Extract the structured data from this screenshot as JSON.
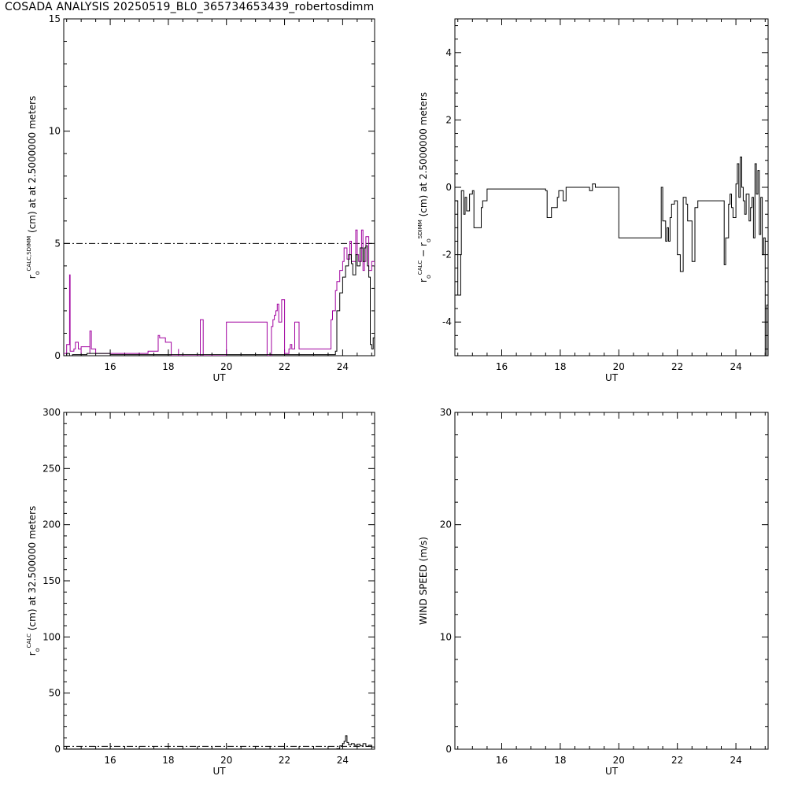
{
  "title": "COSADA ANALYSIS 20250519_BL0_365734653439_robertosdimm",
  "colors": {
    "black": "#000000",
    "magenta": "#a0009e"
  },
  "chart_data": [
    {
      "type": "line",
      "xlabel": "UT",
      "ylabel": {
        "main": "r",
        "sub": "o",
        "sup": "CALC,SDIMM",
        "rest": " (cm)  at   at 2.5000000 meters"
      },
      "xlim": [
        14.4,
        25.1
      ],
      "ylim": [
        0,
        15
      ],
      "xticks": [
        16,
        18,
        20,
        22,
        24
      ],
      "yticks": [
        0,
        5,
        10,
        15
      ],
      "reference_line": {
        "y": 5.0,
        "style": "dash-dot"
      },
      "series": [
        {
          "color": "#a0009e",
          "x": [
            14.4,
            14.5,
            14.6,
            14.62,
            14.75,
            14.8,
            14.9,
            15.0,
            15.0,
            15.3,
            15.3,
            15.35,
            15.5,
            15.5,
            17.3,
            17.3,
            17.5,
            17.65,
            17.7,
            17.9,
            18.1,
            18.1,
            18.35,
            18.35,
            18.4,
            19.05,
            19.1,
            19.2,
            19.2,
            19.25,
            19.25,
            20.0,
            20.0,
            21.4,
            21.4,
            21.55,
            21.6,
            21.65,
            21.7,
            21.75,
            21.8,
            21.9,
            22.0,
            22.1,
            22.15,
            22.2,
            22.25,
            22.35,
            22.5,
            22.6,
            22.65,
            22.7,
            23.5,
            23.6,
            23.65,
            23.75,
            23.8,
            23.9,
            24.0,
            24.05,
            24.15,
            24.25,
            24.3,
            24.45,
            24.5,
            24.55,
            24.65,
            24.7,
            24.75,
            24.8,
            24.9,
            25.0,
            25.1
          ],
          "y": [
            0.1,
            0.5,
            3.6,
            0.2,
            0.3,
            0.6,
            0.3,
            0.1,
            0.4,
            0.1,
            1.1,
            0.3,
            0.1,
            0.1,
            0.1,
            0.2,
            0.2,
            0.9,
            0.8,
            0.6,
            0.3,
            0.0,
            0.3,
            0.0,
            0.0,
            0.0,
            1.6,
            1.3,
            0.0,
            0.0,
            0.0,
            0.0,
            1.5,
            1.5,
            0.0,
            1.3,
            1.6,
            1.8,
            2.0,
            2.3,
            1.5,
            2.5,
            0.1,
            0.1,
            0.3,
            0.5,
            0.3,
            1.5,
            0.3,
            0.3,
            0.3,
            0.3,
            0.3,
            1.6,
            2.0,
            2.9,
            3.3,
            3.8,
            4.2,
            4.8,
            4.3,
            5.1,
            4.2,
            5.6,
            4.5,
            4.2,
            5.6,
            3.8,
            4.2,
            5.3,
            3.8,
            4.2,
            4.0
          ]
        },
        {
          "color": "#000000",
          "x": [
            14.4,
            14.5,
            14.6,
            14.7,
            15.0,
            15.2,
            15.5,
            16.0,
            17.5,
            18.0,
            19.0,
            20.0,
            21.5,
            22.5,
            23.5,
            23.75,
            23.8,
            23.9,
            24.0,
            24.1,
            24.2,
            24.3,
            24.35,
            24.45,
            24.5,
            24.6,
            24.7,
            24.75,
            24.8,
            24.85,
            24.9,
            24.95,
            25.0,
            25.05,
            25.1
          ],
          "y": [
            0.0,
            0.1,
            0.0,
            0.05,
            0.05,
            0.1,
            0.1,
            0.05,
            0.05,
            0.05,
            0.05,
            0.05,
            0.05,
            0.05,
            0.05,
            0.2,
            2.0,
            2.8,
            3.5,
            4.0,
            4.5,
            4.1,
            3.6,
            4.5,
            4.0,
            4.8,
            4.2,
            4.8,
            4.9,
            4.0,
            3.5,
            0.5,
            0.3,
            0.8,
            1.5
          ]
        }
      ]
    },
    {
      "type": "line",
      "xlabel": "UT",
      "ylabel": {
        "main": "r",
        "sub": "o",
        "sup": "CALC",
        "mid": "  −  r",
        "sub2": "o",
        "sup2": "SDIMM",
        "rest": " (cm)  at  2.5000000 meters"
      },
      "xlim": [
        14.4,
        25.1
      ],
      "ylim": [
        -5,
        5
      ],
      "xticks": [
        16,
        18,
        20,
        22,
        24
      ],
      "yticks": [
        -4,
        -2,
        0,
        2,
        4
      ],
      "series": [
        {
          "color": "#000000",
          "x": [
            14.4,
            14.5,
            14.6,
            14.62,
            14.7,
            14.75,
            14.8,
            14.9,
            15.0,
            15.05,
            15.3,
            15.35,
            15.5,
            17.5,
            17.55,
            17.7,
            17.7,
            17.9,
            17.95,
            18.1,
            18.2,
            18.35,
            19.0,
            19.1,
            19.2,
            19.2,
            20.0,
            20.0,
            21.4,
            21.45,
            21.5,
            21.6,
            21.65,
            21.7,
            21.75,
            21.8,
            21.9,
            22.0,
            22.1,
            22.2,
            22.3,
            22.35,
            22.5,
            22.6,
            22.7,
            23.5,
            23.6,
            23.65,
            23.75,
            23.8,
            23.85,
            23.9,
            24.0,
            24.05,
            24.1,
            24.15,
            24.2,
            24.25,
            24.3,
            24.35,
            24.45,
            24.5,
            24.55,
            24.6,
            24.65,
            24.7,
            24.75,
            24.8,
            24.85,
            24.9,
            24.95,
            25.0,
            25.05,
            25.1
          ],
          "y": [
            -0.4,
            -3.2,
            -2.0,
            -0.1,
            -0.8,
            -0.3,
            -0.7,
            -0.2,
            -0.1,
            -1.2,
            -0.6,
            -0.4,
            -0.05,
            -0.1,
            -0.9,
            -0.8,
            -0.6,
            -0.3,
            -0.1,
            -0.4,
            0.0,
            0.0,
            -0.1,
            0.1,
            0.0,
            0.0,
            -0.1,
            -1.5,
            -1.5,
            0.0,
            -1.0,
            -1.6,
            -1.2,
            -1.6,
            -0.9,
            -0.5,
            -0.4,
            -2.0,
            -2.5,
            -0.3,
            -0.5,
            -1.0,
            -2.2,
            -0.6,
            -0.4,
            -0.4,
            -2.3,
            -1.5,
            -0.5,
            -0.2,
            -0.6,
            -0.9,
            0.1,
            0.7,
            -0.3,
            0.9,
            0.0,
            -0.4,
            -0.8,
            -0.2,
            -1.0,
            -0.6,
            -0.3,
            -1.5,
            0.7,
            -0.2,
            0.5,
            -1.4,
            -0.3,
            -2.0,
            -1.5,
            -5.0,
            -3.5,
            -2.5
          ]
        }
      ]
    },
    {
      "type": "line",
      "xlabel": "UT",
      "ylabel": {
        "main": "r",
        "sub": "o",
        "sup": "CALC",
        "rest": " (cm)  at  32.500000 meters"
      },
      "xlim": [
        14.4,
        25.1
      ],
      "ylim": [
        0,
        300
      ],
      "xticks": [
        16,
        18,
        20,
        22,
        24
      ],
      "yticks": [
        0,
        50,
        100,
        150,
        200,
        250,
        300
      ],
      "reference_line": {
        "y": 2.5,
        "style": "dash-dot"
      },
      "series": [
        {
          "color": "#000000",
          "x": [
            14.4,
            15.0,
            16.0,
            17.0,
            18.0,
            19.0,
            20.0,
            21.0,
            22.0,
            23.0,
            23.8,
            23.9,
            24.0,
            24.05,
            24.1,
            24.15,
            24.2,
            24.3,
            24.4,
            24.5,
            24.6,
            24.7,
            24.8,
            24.9,
            25.0,
            25.1
          ],
          "y": [
            0.2,
            0.2,
            0.2,
            0.2,
            0.2,
            0.2,
            0.2,
            0.2,
            0.2,
            0.2,
            0.5,
            3.0,
            5.0,
            7.0,
            12.0,
            6.0,
            4.0,
            5.0,
            3.5,
            4.5,
            3.0,
            5.0,
            2.5,
            3.5,
            2.0,
            1.0
          ]
        }
      ]
    },
    {
      "type": "line",
      "xlabel": "UT",
      "ylabel": {
        "main": "WIND SPEED (m/s)"
      },
      "xlim": [
        14.4,
        25.1
      ],
      "ylim": [
        0,
        30
      ],
      "xticks": [
        16,
        18,
        20,
        22,
        24
      ],
      "yticks": [
        0,
        10,
        20,
        30
      ],
      "series": []
    }
  ]
}
